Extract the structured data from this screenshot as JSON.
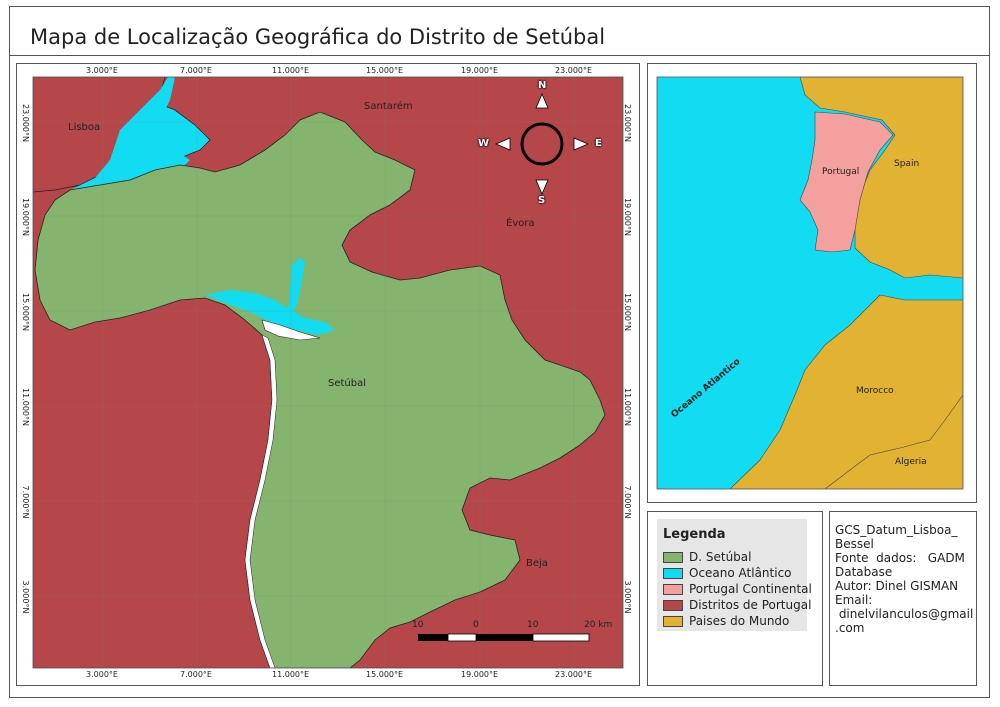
{
  "title": "Mapa de Localização Geográfica do Distrito de Setúbal",
  "colors": {
    "setubal": "#84b46e",
    "ocean": "#12dcf2",
    "portugal": "#f4a09e",
    "districts": "#b5474b",
    "world": "#e2b232"
  },
  "main_map": {
    "grid_x_labels": [
      "3.000°E",
      "7.000°E",
      "11.000°E",
      "15.000°E",
      "19.000°E",
      "23.000°E"
    ],
    "grid_y_labels": [
      "23.000°N",
      "19.000°N",
      "15.000°N",
      "11.000°N",
      "7.000°N",
      "3.000°N"
    ],
    "places": {
      "lisboa": "Lisboa",
      "santarem": "Santarém",
      "evora": "Évora",
      "setubal": "Setúbal",
      "beja": "Beja"
    },
    "compass": {
      "n": "N",
      "s": "S",
      "e": "E",
      "w": "W"
    },
    "scale": {
      "l1": "10",
      "l2": "0",
      "l3": "10",
      "l4": "20 km"
    }
  },
  "inset_map": {
    "portugal": "Portugal",
    "spain": "Spain",
    "morocco": "Morocco",
    "algeria": "Algeria",
    "ocean": "Oceano Atlantico"
  },
  "legend": {
    "title": "Legenda",
    "items": [
      "D. Setúbal",
      "Oceano Atlântico",
      "Portugal Continental",
      "Distritos de Portugal",
      "Paises do Mundo"
    ]
  },
  "info": {
    "l1": "GCS_Datum_Lisboa_",
    "l2": "Bessel",
    "l3": "Fonte  dados:   GADM",
    "l4": "Database",
    "l5": "Autor: Dinel GISMAN",
    "l6": "Email:",
    "l7": " dinelvilanculos@gmail",
    "l8": ".com"
  }
}
